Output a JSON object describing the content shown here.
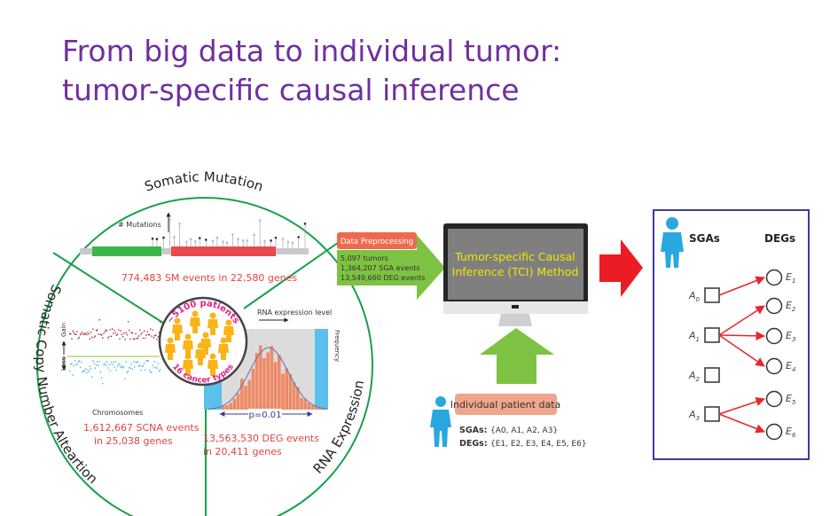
{
  "slide": {
    "title_line1": "From big data to individual tumor:",
    "title_line2": "tumor-specific causal inference",
    "accent_color": "#7030a0"
  },
  "wheel": {
    "somatic_mutation_label": "Somatic Mutation",
    "mutations_axis_label": "# Mutations",
    "sm_stats": "774,483 SM events in 22,580 genes",
    "scna_label": "Somatic Copy Number Alteartion",
    "gain_label": "Gain",
    "loss_label": "Loss",
    "chromosomes_label": "Chromosomes",
    "scna_stats_line1": "1,612,667 SCNA events",
    "scna_stats_line2": "in 25,038 genes",
    "rna_label": "RNA Expression",
    "rna_level_label": "RNA expression level",
    "frequency_label": "Frequency",
    "p_value_label": "p=0.01",
    "deg_stats_line1": "13,563,530 DEG events",
    "deg_stats_line2": "in 20,411 genes",
    "patients_label": "~5100 patients",
    "cancer_types_label": "16 cancer types"
  },
  "preprocessing": {
    "label": "Data Preprocessing",
    "lines": [
      "5,097 tumors",
      "1,364,207 SGA events",
      "13,549,660 DEG events"
    ]
  },
  "method": {
    "line1": "Tumor-specific Causal",
    "line2": "Inference (TCI) Method"
  },
  "patient": {
    "label": "Individual patient data",
    "sgas_key": "SGAs:",
    "sgas_value": "{A0, A1, A2, A3}",
    "degs_key": "DEGs:",
    "degs_value": "{E1, E2, E3, E4, E5, E6}"
  },
  "network": {
    "sgas_header": "SGAs",
    "degs_header": "DEGs",
    "sga_nodes": [
      "A0",
      "A1",
      "A2",
      "A3"
    ],
    "deg_nodes": [
      "E1",
      "E2",
      "E3",
      "E4",
      "E5",
      "E6"
    ],
    "edges": [
      [
        "A0",
        "E1"
      ],
      [
        "A1",
        "E2"
      ],
      [
        "A1",
        "E3"
      ],
      [
        "A1",
        "E4"
      ],
      [
        "A3",
        "E5"
      ],
      [
        "A3",
        "E6"
      ]
    ],
    "edge_color": "#e8262b",
    "border_color": "#3c3c9c"
  }
}
